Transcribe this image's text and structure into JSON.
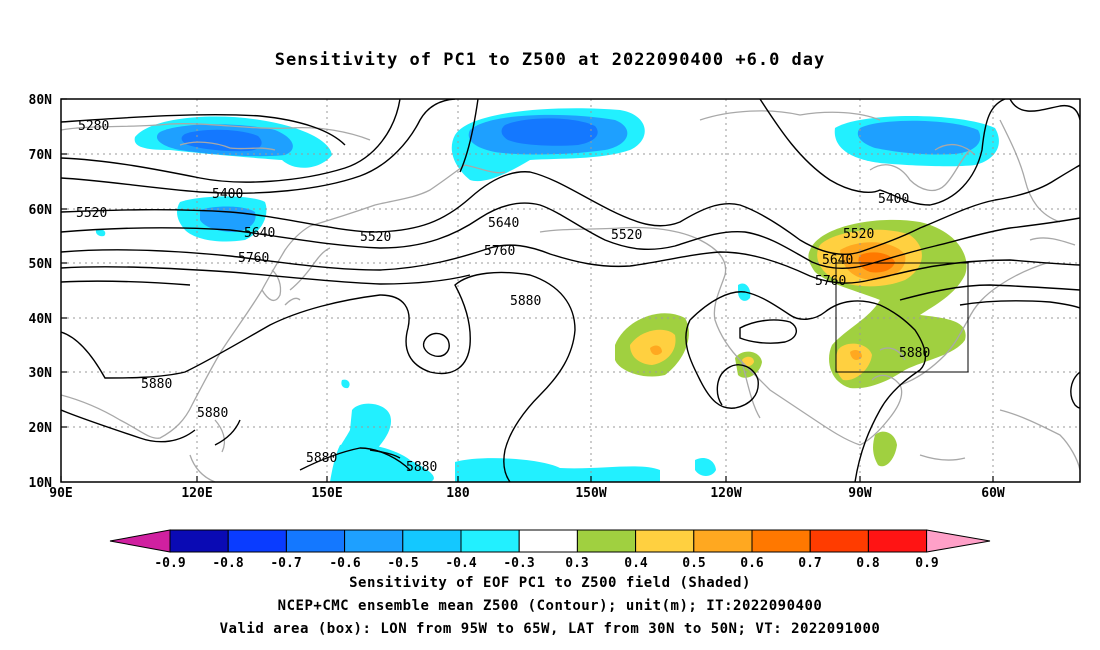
{
  "title": "Sensitivity of PC1 to Z500 at 2022090400 +6.0 day",
  "map": {
    "lon_labels": [
      "90E",
      "120E",
      "150E",
      "180",
      "150W",
      "120W",
      "90W",
      "60W"
    ],
    "lat_labels": [
      "80N",
      "70N",
      "60N",
      "50N",
      "40N",
      "30N",
      "20N",
      "10N"
    ],
    "contour_labels": [
      {
        "id": "c5280",
        "text": "5280"
      },
      {
        "id": "c5400a",
        "text": "5400"
      },
      {
        "id": "c5400b",
        "text": "5400"
      },
      {
        "id": "c5520a",
        "text": "5520"
      },
      {
        "id": "c5520b",
        "text": "5520"
      },
      {
        "id": "c5520c",
        "text": "5520"
      },
      {
        "id": "c5520d",
        "text": "5520"
      },
      {
        "id": "c5640a",
        "text": "5640"
      },
      {
        "id": "c5640b",
        "text": "5640"
      },
      {
        "id": "c5640c",
        "text": "5640"
      },
      {
        "id": "c5760a",
        "text": "5760"
      },
      {
        "id": "c5760b",
        "text": "5760"
      },
      {
        "id": "c5760c",
        "text": "5760"
      },
      {
        "id": "c5880a",
        "text": "5880"
      },
      {
        "id": "c5880b",
        "text": "5880"
      },
      {
        "id": "c5880c",
        "text": "5880"
      },
      {
        "id": "c5880d",
        "text": "5880"
      },
      {
        "id": "c5880e",
        "text": "5880"
      },
      {
        "id": "c5880f",
        "text": "5880"
      }
    ],
    "valid_box": {
      "lon_from": "95W",
      "lon_to": "65W",
      "lat_from": "30N",
      "lat_to": "50N"
    }
  },
  "colorbar": {
    "labels": [
      "-0.9",
      "-0.8",
      "-0.7",
      "-0.6",
      "-0.5",
      "-0.4",
      "-0.3",
      "0.3",
      "0.4",
      "0.5",
      "0.6",
      "0.7",
      "0.8",
      "0.9"
    ],
    "colors": [
      "#d020a0",
      "#0a0ab4",
      "#0a3cff",
      "#1478ff",
      "#1ea0ff",
      "#14c8ff",
      "#22f0ff",
      "#ffffff",
      "#a0d040",
      "#ffd040",
      "#ffa820",
      "#ff7800",
      "#ff3c00",
      "#ff1414",
      "#ffa0c8"
    ]
  },
  "captions": {
    "line1": "Sensitivity of EOF PC1 to Z500 field (Shaded)",
    "line2": "NCEP+CMC ensemble mean Z500 (Contour); unit(m); IT:2022090400",
    "line3": "Valid area (box): LON from 95W to 65W, LAT from 30N to 50N; VT: 2022091000"
  }
}
